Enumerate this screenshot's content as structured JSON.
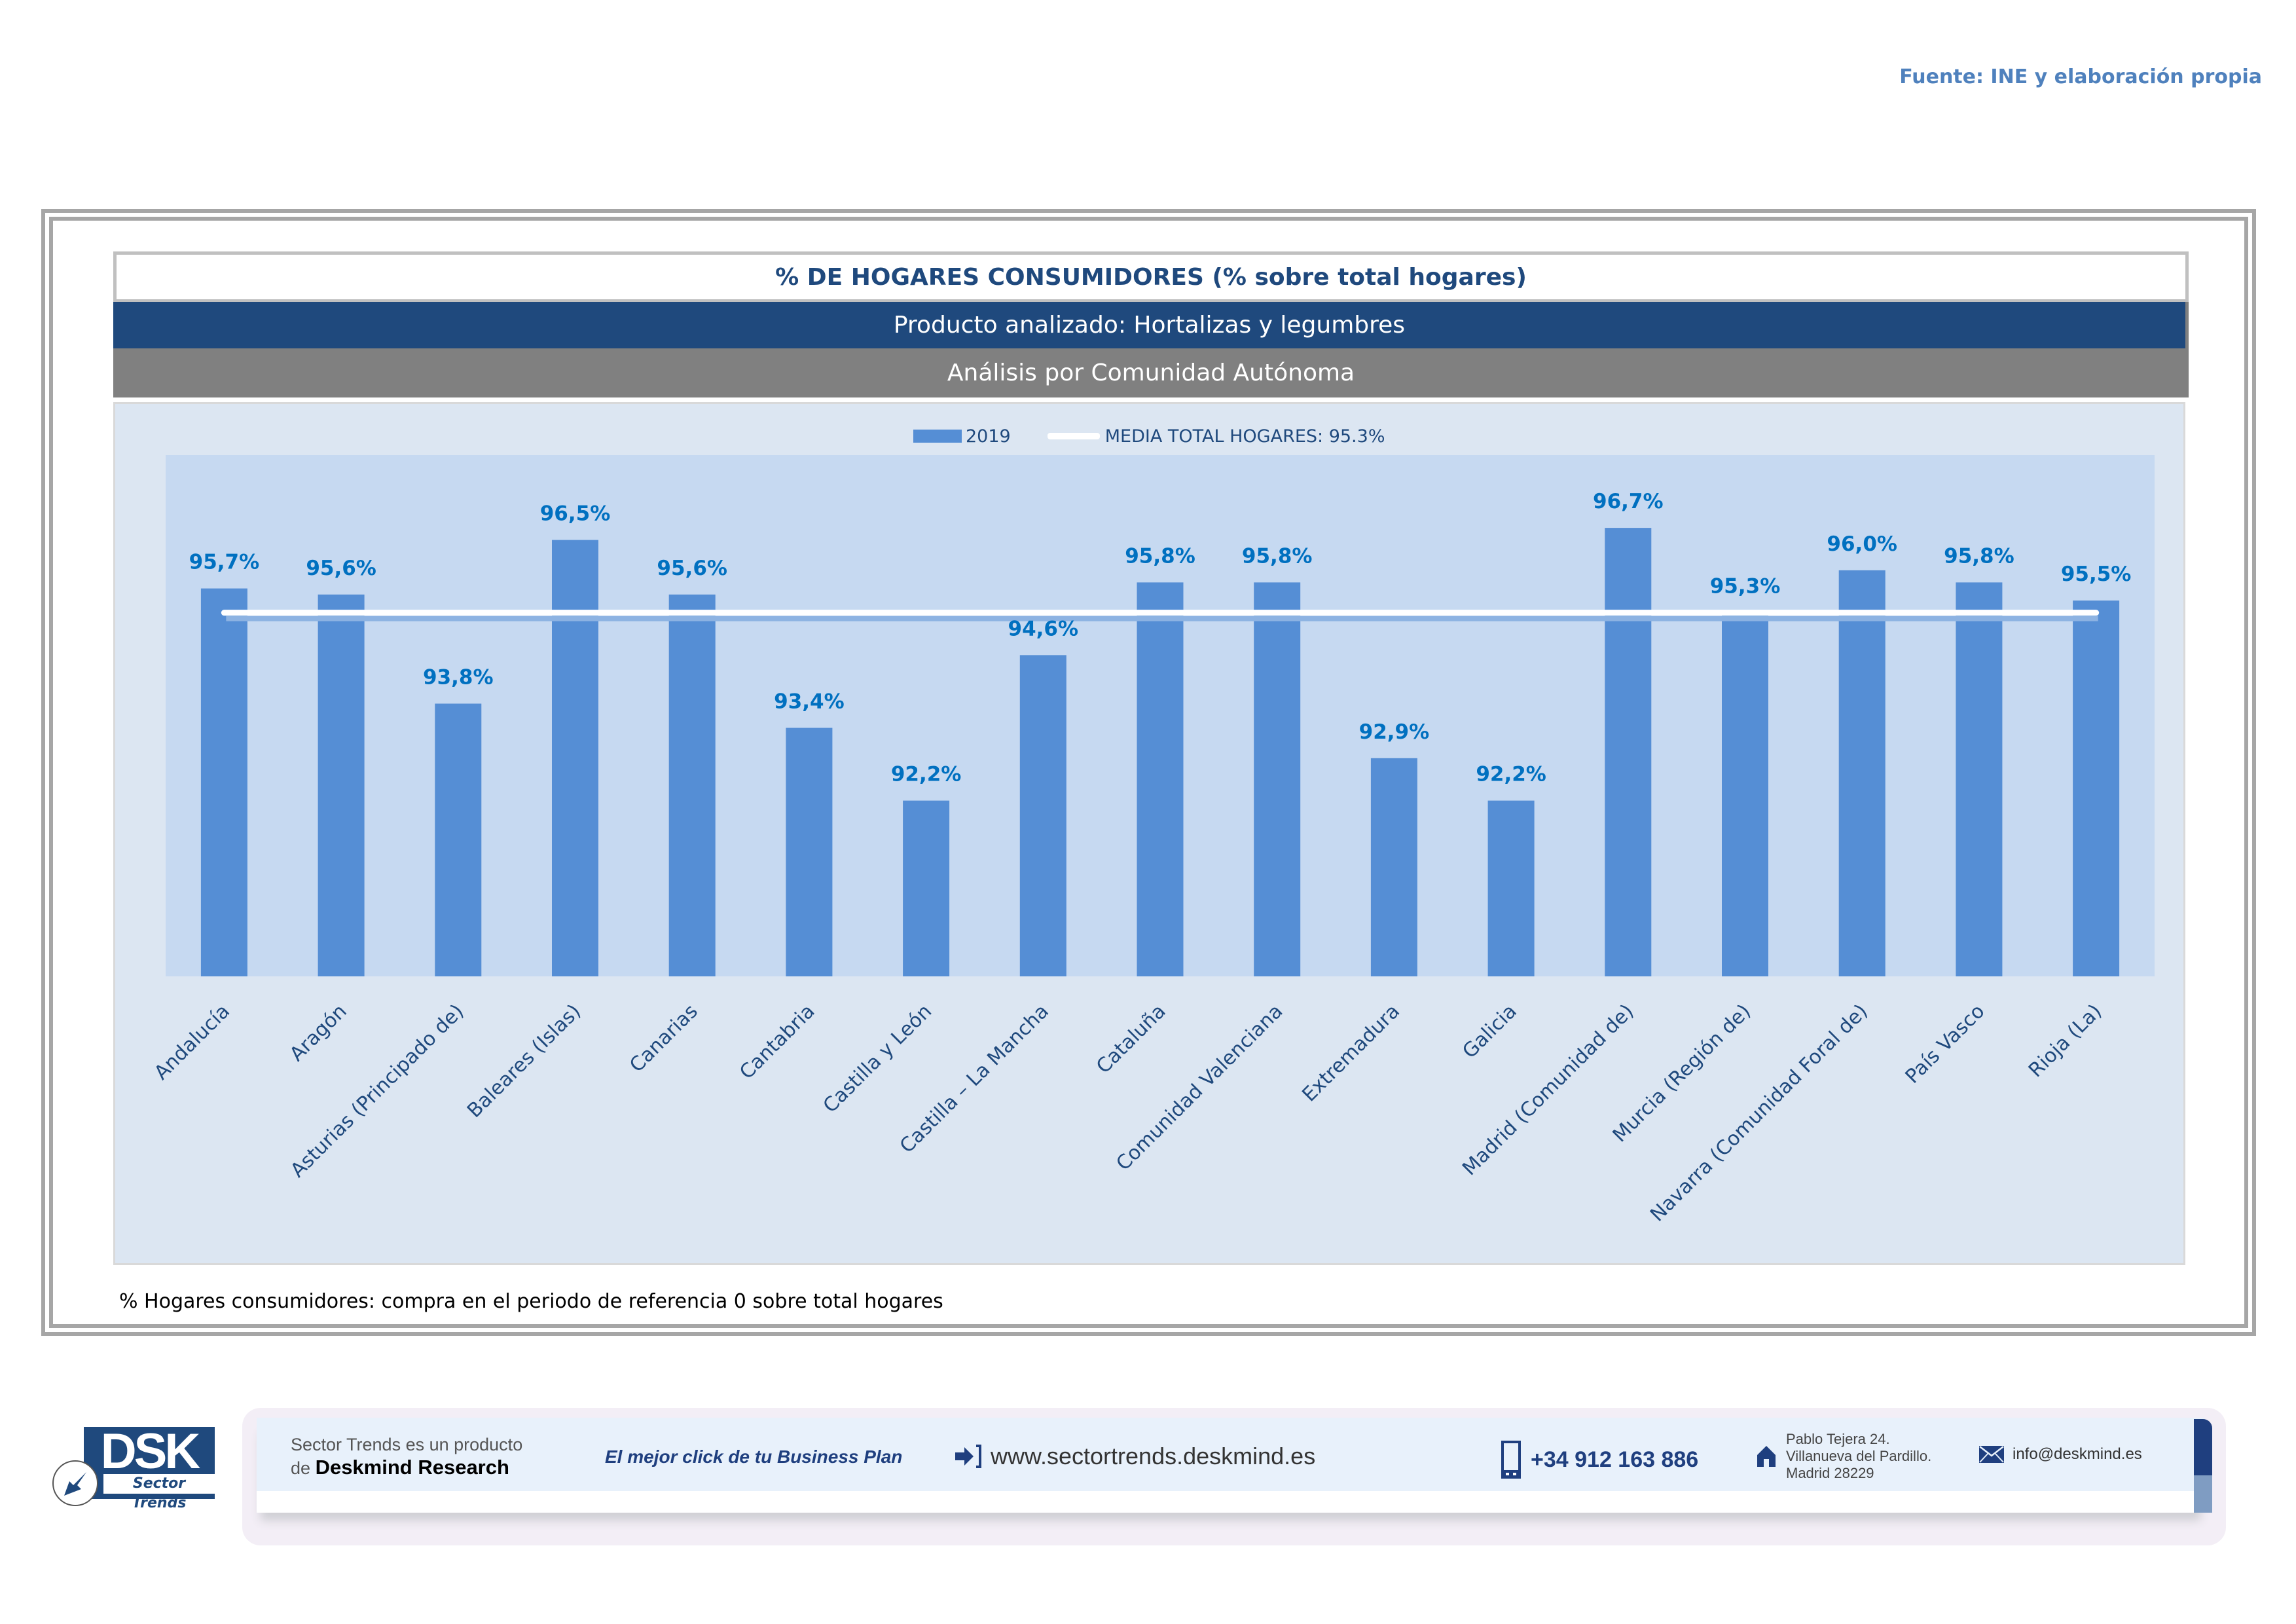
{
  "source": "Fuente: INE y elaboración propia",
  "header": {
    "title": "% DE HOGARES CONSUMIDORES (% sobre total hogares)",
    "product": "Producto analizado: Hortalizas y legumbres",
    "analysis": "Análisis por Comunidad Autónoma"
  },
  "legend": {
    "series_label": "2019",
    "mean_label": "MEDIA TOTAL  HOGARES:  95.3%"
  },
  "footnote": "% Hogares consumidores: compra en el periodo de referencia 0 sobre total hogares",
  "colors": {
    "bar": "#558ed5",
    "plot_bg": "#c6d9f1",
    "chart_bg": "#dce6f2",
    "data_label": "#0070c0",
    "axis_label": "#1f497d",
    "mean_line": "#ffffff",
    "title_blue": "#1f497d",
    "subheader_gray": "#808080"
  },
  "chart_data": {
    "type": "bar",
    "title": "% DE HOGARES CONSUMIDORES (% sobre total hogares)",
    "subtitle": "Producto analizado: Hortalizas y legumbres — Análisis por Comunidad Autónoma",
    "xlabel": "",
    "ylabel": "",
    "ylim": [
      89.3,
      97.9
    ],
    "grid": false,
    "legend_position": "top-center",
    "categories": [
      "Andalucía",
      "Aragón",
      "Asturias (Principado de)",
      "Baleares (Islas)",
      "Canarias",
      "Cantabria",
      "Castilla y León",
      "Castilla – La Mancha",
      "Cataluña",
      "Comunidad Valenciana",
      "Extremadura",
      "Galicia",
      "Madrid (Comunidad de)",
      "Murcia (Región de)",
      "Navarra (Comunidad Foral de)",
      "País Vasco",
      "Rioja (La)"
    ],
    "series": [
      {
        "name": "2019",
        "values": [
          95.7,
          95.6,
          93.8,
          96.5,
          95.6,
          93.4,
          92.2,
          94.6,
          95.8,
          95.8,
          92.9,
          92.2,
          96.7,
          95.3,
          96.0,
          95.8,
          95.5
        ],
        "labels": [
          "95,7%",
          "95,6%",
          "93,8%",
          "96,5%",
          "95,6%",
          "93,4%",
          "92,2%",
          "94,6%",
          "95,8%",
          "95,8%",
          "92,9%",
          "92,2%",
          "96,7%",
          "95,3%",
          "96,0%",
          "95,8%",
          "95,5%"
        ]
      }
    ],
    "reference_lines": [
      {
        "name": "MEDIA TOTAL  HOGARES:  95.3%",
        "value": 95.3
      }
    ]
  },
  "footer": {
    "logo_text": "DSK",
    "logo_subtext": "Sector Trends",
    "product_line1": "Sector Trends es un producto",
    "product_line2_prefix": "de",
    "product_line2_brand": "Deskmind Research",
    "slogan": "El mejor click de tu Business Plan",
    "website": "www.sectortrends.deskmind.es",
    "phone": "+34 912 163 886",
    "address_line1": "Pablo Tejera 24.",
    "address_line2": "Villanueva del Pardillo.",
    "address_line3": "Madrid 28229",
    "email": "info@deskmind.es"
  }
}
